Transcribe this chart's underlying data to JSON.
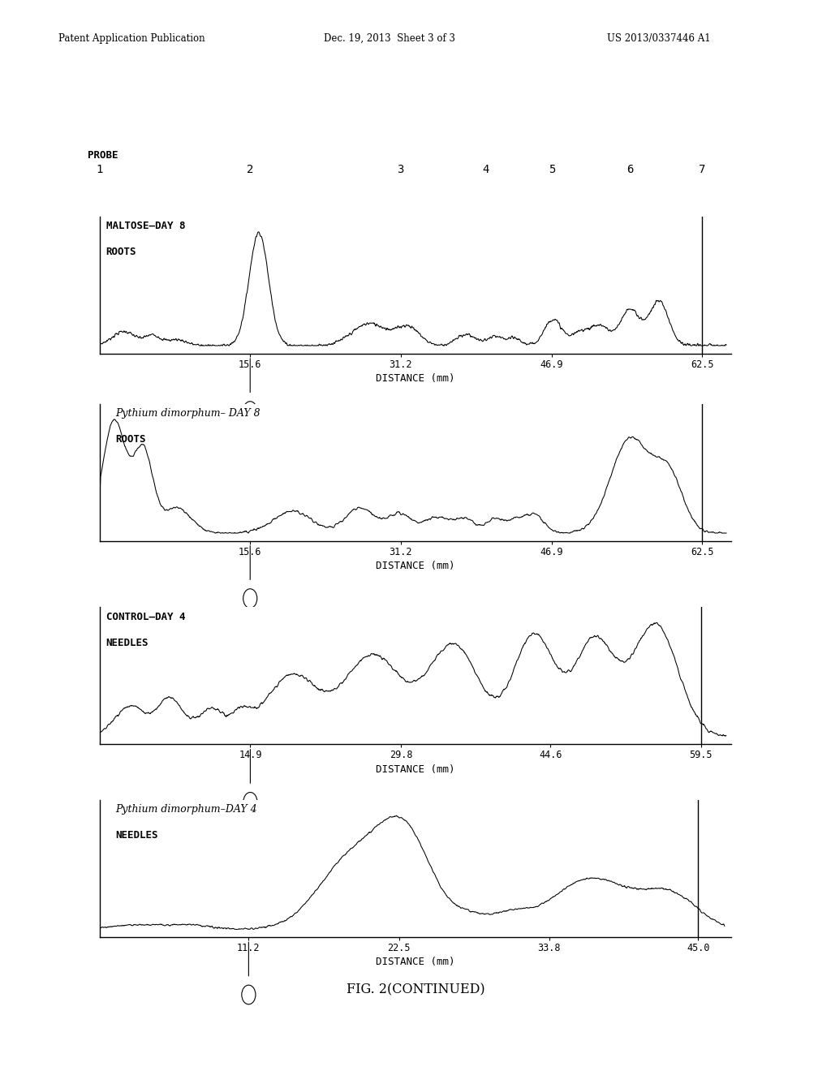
{
  "header_left": "Patent Application Publication",
  "header_mid": "Dec. 19, 2013  Sheet 3 of 3",
  "header_right": "US 2013/0337446 A1",
  "probe_labels": [
    "1",
    "2",
    "3",
    "4",
    "5",
    "6",
    "7"
  ],
  "figure_caption": "FIG. 2(CONTINUED)",
  "panel_configs": [
    {
      "title_line1": "MALTOSE–DAY 8",
      "title_line2": "ROOTS",
      "title_italic": false,
      "xlabel": "DISTANCE (mm)",
      "xticks": [
        15.6,
        31.2,
        46.9,
        62.5
      ],
      "xmin": 0.0,
      "xmax": 65.5,
      "right_vline": 62.5
    },
    {
      "title_line1": "Pythium dimorphum– DAY 8",
      "title_line2": "ROOTS",
      "title_italic": true,
      "xlabel": "DISTANCE (mm)",
      "xticks": [
        15.6,
        31.2,
        46.9,
        62.5
      ],
      "xmin": 0.0,
      "xmax": 65.5,
      "right_vline": 62.5
    },
    {
      "title_line1": "CONTROL–DAY 4",
      "title_line2": "NEEDLES",
      "title_italic": false,
      "xlabel": "DISTANCE (mm)",
      "xticks": [
        14.9,
        29.8,
        44.6,
        59.5
      ],
      "xmin": 0.0,
      "xmax": 62.5,
      "right_vline": 59.5
    },
    {
      "title_line1": "Pythium dimorphum–DAY 4",
      "title_line2": "NEEDLES",
      "title_italic": true,
      "xlabel": "DISTANCE (mm)",
      "xticks": [
        11.2,
        22.5,
        33.8,
        45.0
      ],
      "xmin": 0.0,
      "xmax": 47.5,
      "right_vline": 45.0
    }
  ],
  "bg_color": "#ffffff",
  "line_color": "#000000"
}
